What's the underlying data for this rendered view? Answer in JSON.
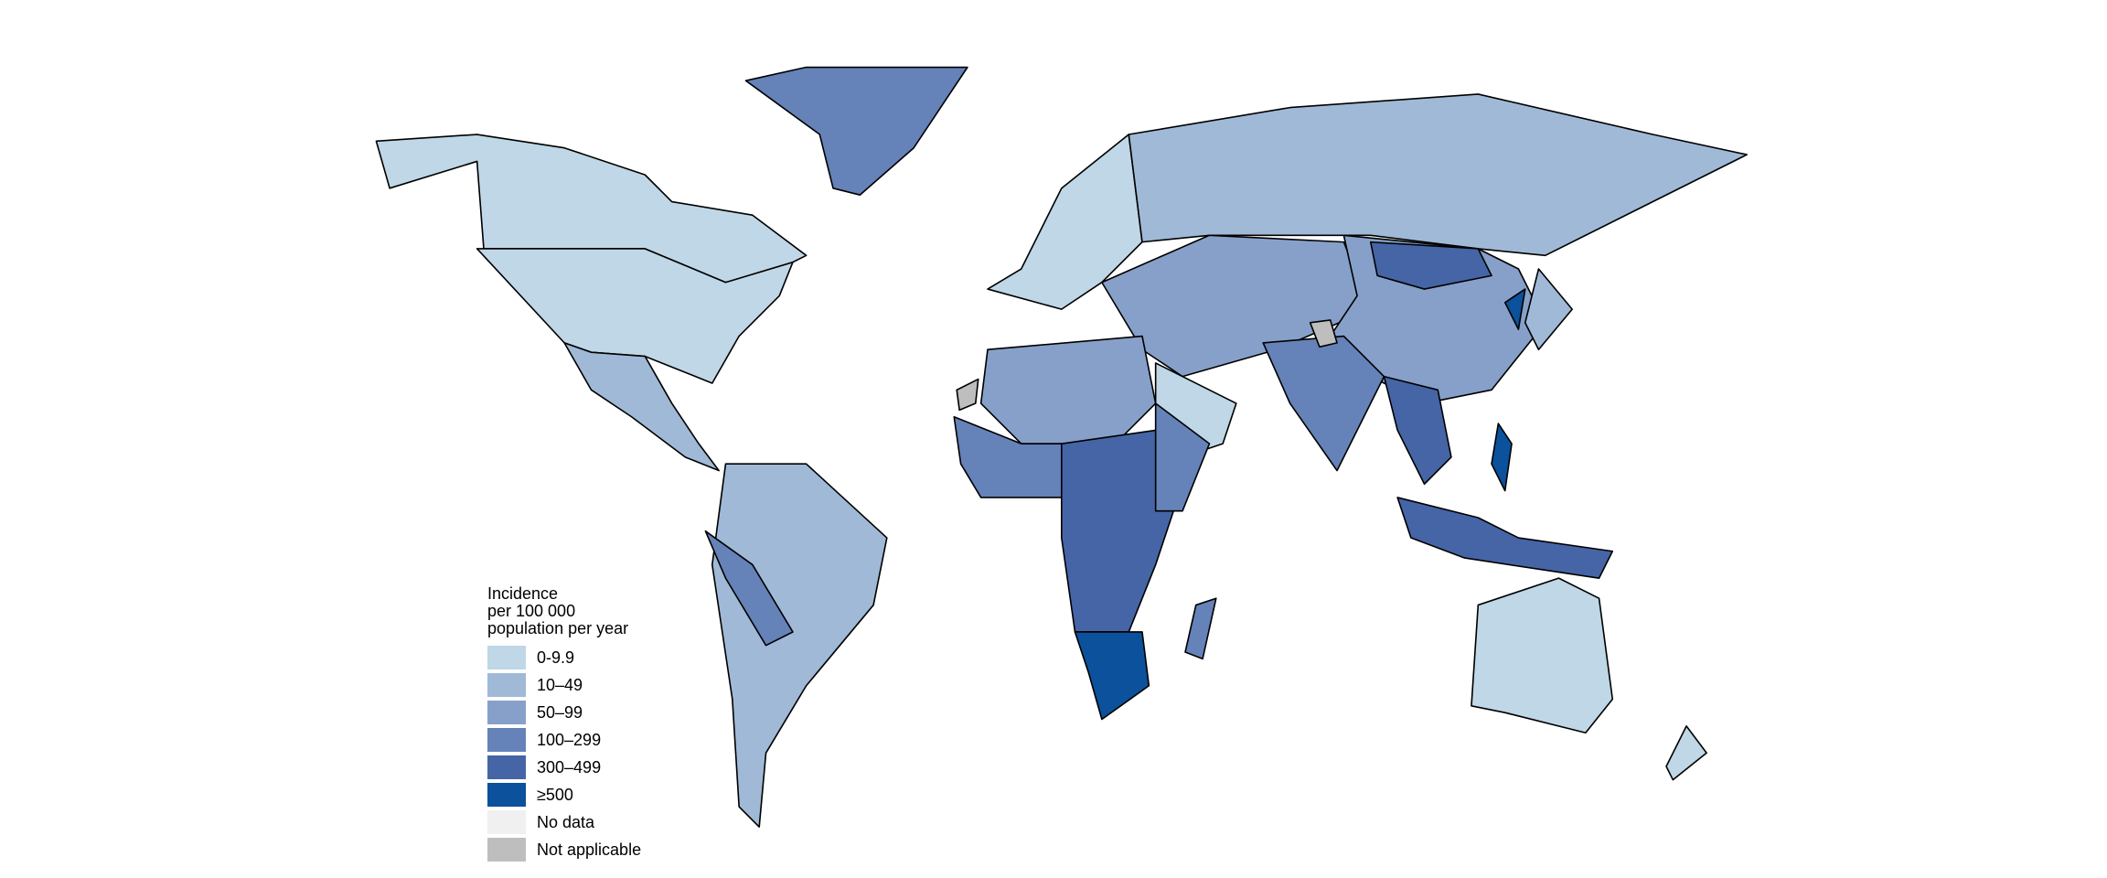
{
  "legend": {
    "title_lines": [
      "Incidence",
      "per 100 000",
      "population per year"
    ],
    "items": [
      {
        "label": "0-9.9",
        "color": "#bfd7e6"
      },
      {
        "label": "10–49",
        "color": "#a0b9d7"
      },
      {
        "label": "50–99",
        "color": "#86a0c9"
      },
      {
        "label": "100–299",
        "color": "#6582b9"
      },
      {
        "label": "300–499",
        "color": "#4565a6"
      },
      {
        "label": "≥500",
        "color": "#0b519c"
      },
      {
        "label": "No data",
        "color": "#f0f0f0"
      },
      {
        "label": "Not applicable",
        "color": "#bebebe"
      }
    ]
  }
}
